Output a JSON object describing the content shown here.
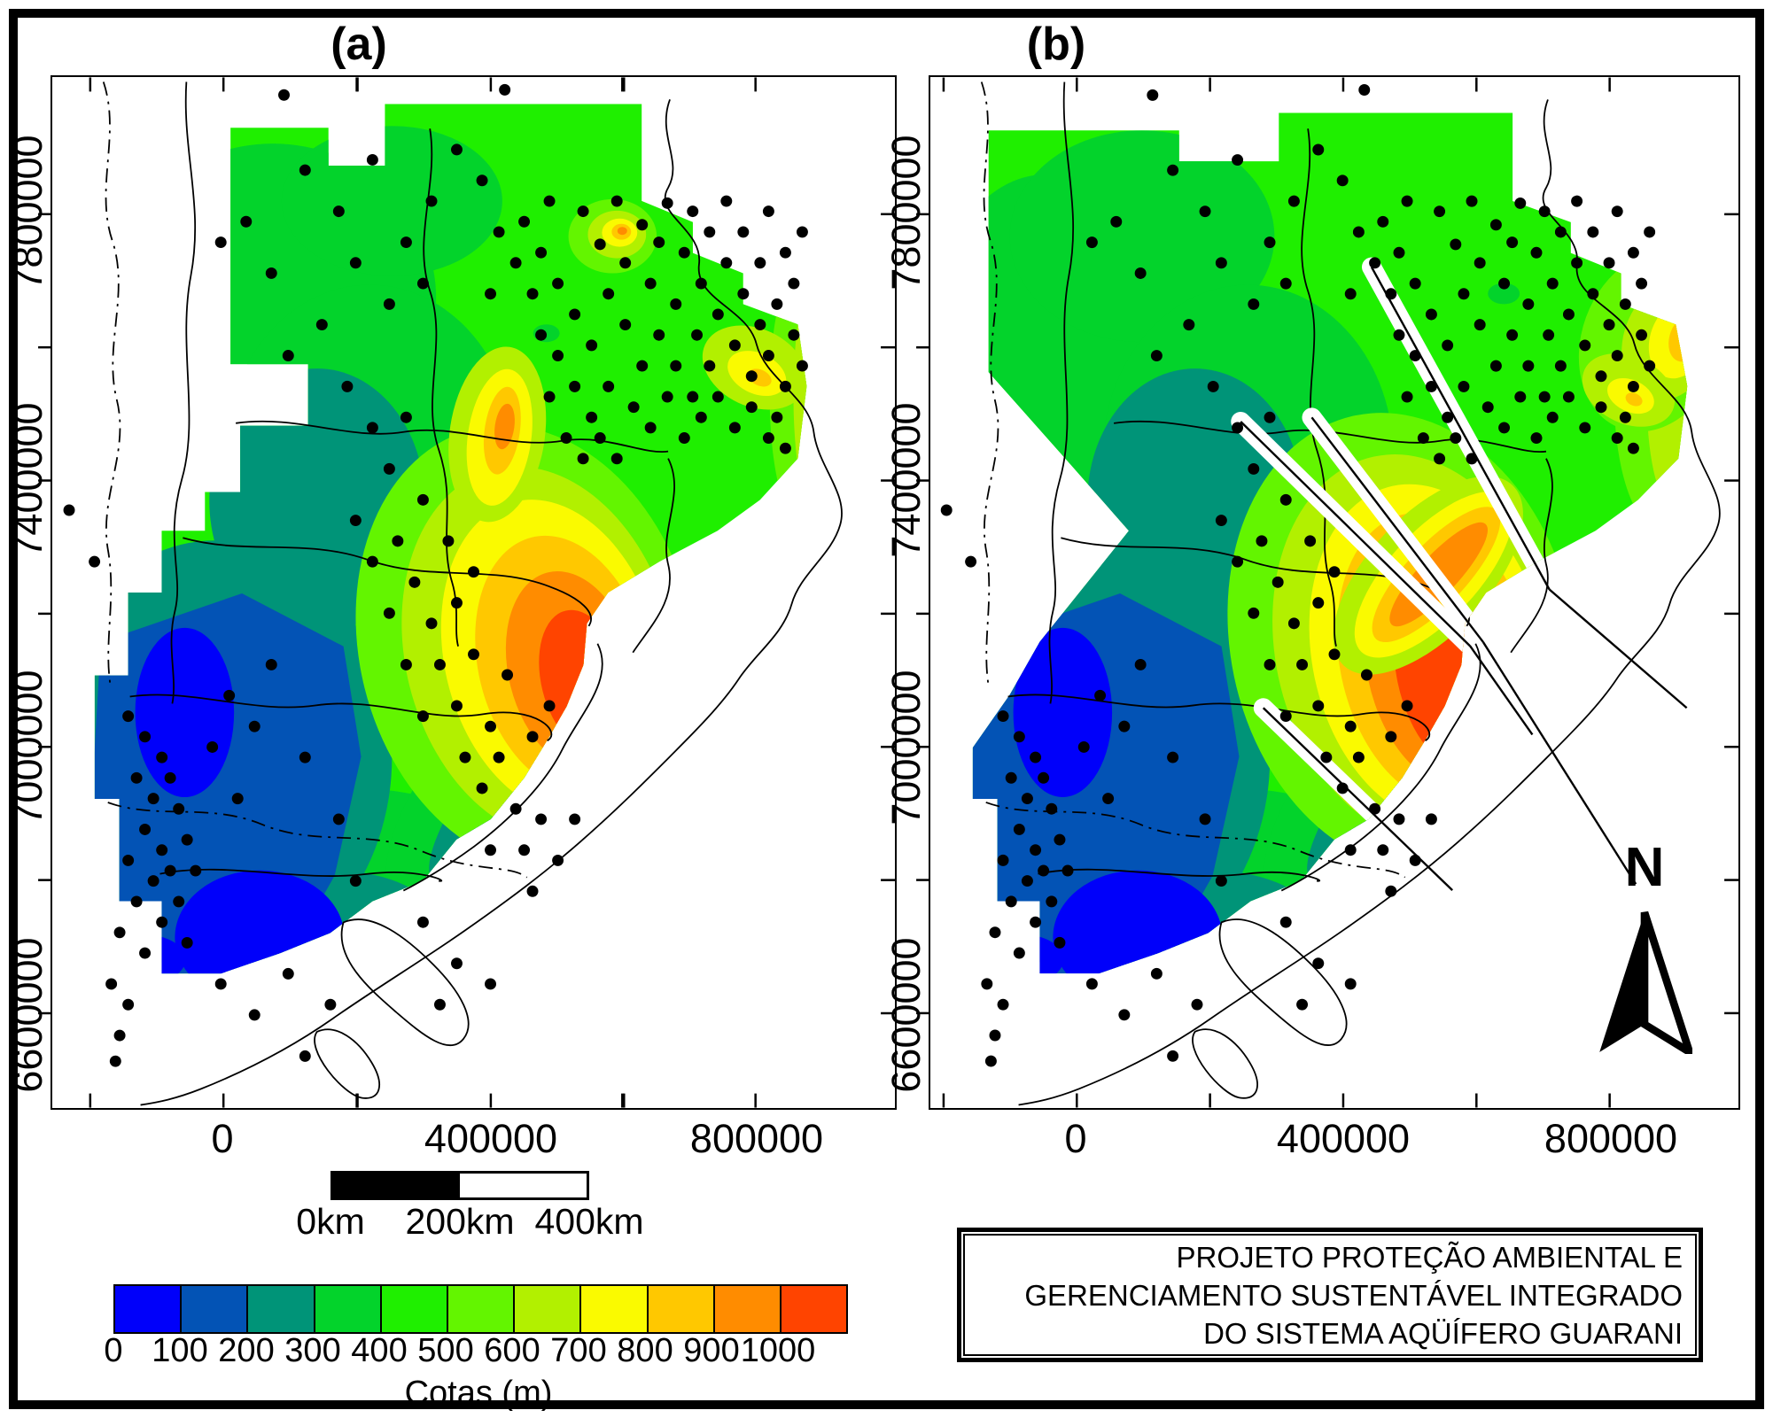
{
  "figure": {
    "panel_a": {
      "label": "(a)"
    },
    "panel_b": {
      "label": "(b)"
    },
    "axes": {
      "y_ticks": [
        "7800000",
        "7400000",
        "7000000",
        "6600000"
      ],
      "x_ticks": [
        "0",
        "400000",
        "800000"
      ]
    },
    "scale_bar": {
      "labels": [
        "0km",
        "200km",
        "400km"
      ]
    },
    "colorbar": {
      "title": "Cotas (m)",
      "tick_labels": [
        "0",
        "100",
        "200",
        "300",
        "400",
        "500",
        "600",
        "700",
        "800",
        "900",
        "1000"
      ],
      "cells": [
        {
          "range": "0-100",
          "color": "#0000FA"
        },
        {
          "range": "100-200",
          "color": "#0353B5"
        },
        {
          "range": "200-300",
          "color": "#009478"
        },
        {
          "range": "300-400",
          "color": "#03D32B"
        },
        {
          "range": "400-500",
          "color": "#1FEF00"
        },
        {
          "range": "500-600",
          "color": "#63F500"
        },
        {
          "range": "600-700",
          "color": "#B2F000"
        },
        {
          "range": "700-800",
          "color": "#FAFA00"
        },
        {
          "range": "800-900",
          "color": "#FFC800"
        },
        {
          "range": "900-1000",
          "color": "#FF8C00"
        },
        {
          "range": ">1000",
          "color": "#FF4400"
        }
      ]
    },
    "north_arrow_label": "N",
    "title_box": {
      "lines": [
        "PROJETO PROTEÇÃO AMBIENTAL E",
        "GERENCIAMENTO SUSTENTÁVEL INTEGRADO",
        "DO SISTEMA AQÜÍFERO GUARANI"
      ]
    },
    "panel_b_overlays": {
      "lineaments": [
        [
          54.6,
          18.4,
          76.6,
          49.7
        ],
        [
          38.4,
          33.4,
          66.8,
          55.2
        ],
        [
          47.2,
          33.0,
          68.4,
          54.8
        ],
        [
          41.2,
          61.2,
          64.6,
          78.9
        ]
      ],
      "fault_lines": [
        [
          76.6,
          49.7,
          93.6,
          61.2
        ],
        [
          68.4,
          54.8,
          87.3,
          78.3
        ],
        [
          66.8,
          55.2,
          74.5,
          63.8
        ]
      ]
    }
  },
  "wells": [
    [
      63,
      13
    ],
    [
      65,
      16.2
    ],
    [
      67,
      12
    ],
    [
      68,
      18
    ],
    [
      70,
      14.3
    ],
    [
      71,
      20
    ],
    [
      72,
      16
    ],
    [
      73,
      12.2
    ],
    [
      74,
      22
    ],
    [
      75,
      17
    ],
    [
      76,
      13
    ],
    [
      76.5,
      25
    ],
    [
      77,
      20
    ],
    [
      78,
      15
    ],
    [
      78,
      28
    ],
    [
      79,
      23
    ],
    [
      80,
      18
    ],
    [
      80,
      12
    ],
    [
      81,
      26
    ],
    [
      82,
      21
    ],
    [
      82,
      15
    ],
    [
      83,
      29
    ],
    [
      84,
      24
    ],
    [
      84,
      18
    ],
    [
      85,
      13
    ],
    [
      85,
      27
    ],
    [
      86,
      22
    ],
    [
      87,
      17
    ],
    [
      87,
      30
    ],
    [
      88,
      25
    ],
    [
      88,
      20
    ],
    [
      89,
      15
    ],
    [
      89,
      28
    ],
    [
      86,
      33
    ],
    [
      76,
      31
    ],
    [
      74,
      28
    ],
    [
      72,
      25
    ],
    [
      70,
      28
    ],
    [
      68,
      24
    ],
    [
      66,
      21
    ],
    [
      64,
      26
    ],
    [
      62,
      23
    ],
    [
      60,
      20
    ],
    [
      58,
      17
    ],
    [
      56,
      14
    ],
    [
      69,
      32
    ],
    [
      71,
      34
    ],
    [
      73,
      31
    ],
    [
      75,
      35
    ],
    [
      77,
      33
    ],
    [
      79,
      31
    ],
    [
      81,
      34
    ],
    [
      83,
      32
    ],
    [
      66,
      30
    ],
    [
      64,
      33
    ],
    [
      62,
      30
    ],
    [
      60,
      27
    ],
    [
      58,
      25
    ],
    [
      57,
      21
    ],
    [
      59,
      31
    ],
    [
      61,
      35
    ],
    [
      63,
      37
    ],
    [
      65,
      35
    ],
    [
      67,
      37
    ],
    [
      85,
      35
    ],
    [
      87,
      36
    ],
    [
      59,
      12
    ],
    [
      55,
      18
    ],
    [
      53,
      15
    ],
    [
      52,
      21
    ],
    [
      20,
      16
    ],
    [
      23,
      14
    ],
    [
      26,
      19
    ],
    [
      30,
      9
    ],
    [
      34,
      13
    ],
    [
      38,
      8
    ],
    [
      42,
      16
    ],
    [
      45,
      12
    ],
    [
      48,
      7
    ],
    [
      51,
      10
    ],
    [
      44,
      20
    ],
    [
      40,
      22
    ],
    [
      36,
      18
    ],
    [
      32,
      24
    ],
    [
      28,
      27
    ],
    [
      27.5,
      1.7
    ],
    [
      53.7,
      1.2
    ],
    [
      35,
      30
    ],
    [
      38,
      34
    ],
    [
      40,
      38
    ],
    [
      42,
      33
    ],
    [
      44,
      41
    ],
    [
      41,
      45
    ],
    [
      43,
      49
    ],
    [
      45,
      53
    ],
    [
      47,
      45
    ],
    [
      48,
      51
    ],
    [
      50,
      48
    ],
    [
      46,
      57
    ],
    [
      48,
      61
    ],
    [
      50,
      56
    ],
    [
      52,
      63
    ],
    [
      54,
      58
    ],
    [
      49,
      66
    ],
    [
      51,
      69
    ],
    [
      53,
      66
    ],
    [
      55,
      71
    ],
    [
      44,
      62
    ],
    [
      42,
      57
    ],
    [
      40,
      52
    ],
    [
      38,
      47
    ],
    [
      36,
      43
    ],
    [
      57,
      64
    ],
    [
      59,
      61
    ],
    [
      56,
      75
    ],
    [
      58,
      72
    ],
    [
      52,
      75
    ],
    [
      9,
      62
    ],
    [
      11,
      64
    ],
    [
      13,
      66
    ],
    [
      10,
      68
    ],
    [
      12,
      70
    ],
    [
      14,
      68
    ],
    [
      15,
      71
    ],
    [
      11,
      73
    ],
    [
      13,
      75
    ],
    [
      16,
      74
    ],
    [
      9,
      76
    ],
    [
      12,
      78
    ],
    [
      14,
      77
    ],
    [
      17,
      77
    ],
    [
      10,
      80
    ],
    [
      13,
      82
    ],
    [
      15,
      80
    ],
    [
      8,
      83
    ],
    [
      11,
      85
    ],
    [
      16,
      84
    ],
    [
      7,
      88
    ],
    [
      9,
      90
    ],
    [
      8,
      93
    ],
    [
      7.5,
      95.5
    ],
    [
      20,
      88
    ],
    [
      24,
      91
    ],
    [
      28,
      87
    ],
    [
      33,
      90
    ],
    [
      30,
      95
    ],
    [
      48,
      86
    ],
    [
      52,
      88
    ],
    [
      57,
      79
    ],
    [
      60,
      76
    ],
    [
      62,
      72
    ],
    [
      2,
      42
    ],
    [
      5,
      47
    ],
    [
      26,
      57
    ],
    [
      24,
      63
    ],
    [
      30,
      66
    ],
    [
      22,
      70
    ],
    [
      34,
      72
    ],
    [
      36,
      78
    ],
    [
      44,
      82
    ],
    [
      46,
      90
    ],
    [
      21,
      60
    ],
    [
      19,
      65
    ]
  ],
  "chart_data": {
    "type": "heatmap",
    "subtype": "filled-contour-map, two panels",
    "panels": [
      "(a)",
      "(b)"
    ],
    "x_ticks": [
      0,
      400000,
      800000
    ],
    "y_ticks": [
      7800000,
      7400000,
      7000000,
      6600000
    ],
    "legend_title": "Cotas (m)",
    "legend_levels": [
      0,
      100,
      200,
      300,
      400,
      500,
      600,
      700,
      800,
      900,
      1000
    ],
    "legend_colors": [
      "#0000FA",
      "#0353B5",
      "#009478",
      "#03D32B",
      "#1FEF00",
      "#63F500",
      "#B2F000",
      "#FAFA00",
      "#FFC800",
      "#FF8C00",
      "#FF4400"
    ],
    "scale_bar_km": [
      0,
      200,
      400
    ],
    "notes_visible": "Panel (b) shows the same surface as (a) plus white diagonal lineament corridors; black dots are measurement points"
  }
}
